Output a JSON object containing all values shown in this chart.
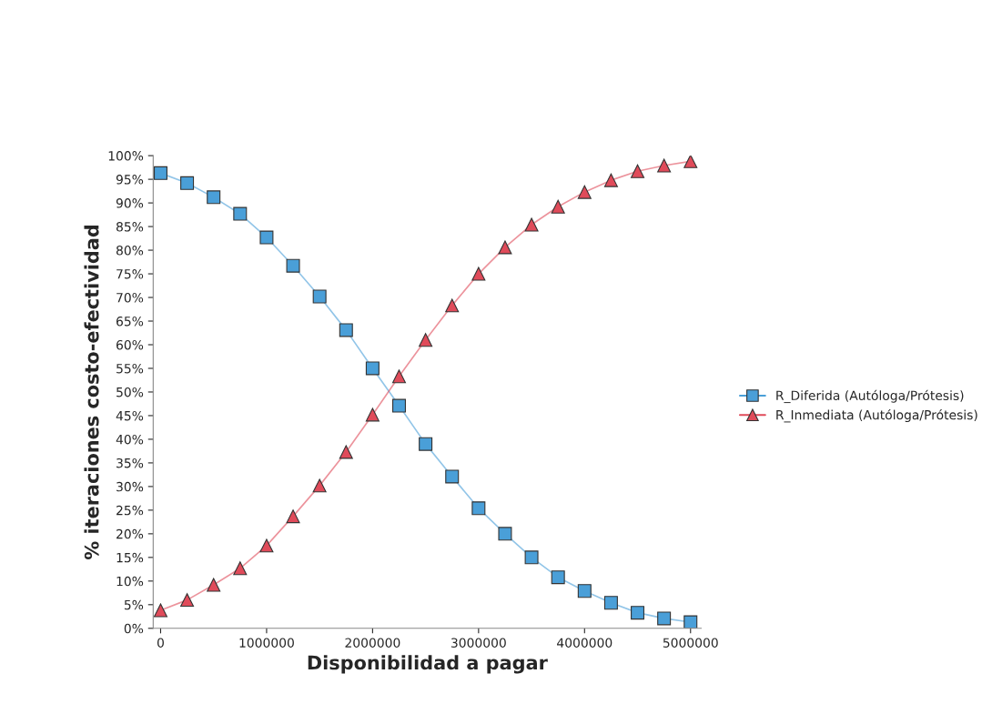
{
  "chart_data": {
    "type": "line",
    "xlabel": "Disponibilidad a pagar",
    "ylabel": "% iteraciones costo-efectividad",
    "x": [
      0,
      250000,
      500000,
      750000,
      1000000,
      1250000,
      1500000,
      1750000,
      2000000,
      2250000,
      2500000,
      2750000,
      3000000,
      3250000,
      3500000,
      3750000,
      4000000,
      4250000,
      4500000,
      4750000,
      5000000
    ],
    "series": [
      {
        "name": "R_Diferida (Autóloga/Prótesis)",
        "color": "#4a9fd8",
        "marker": "square",
        "values": [
          96.3,
          94.2,
          91.2,
          87.7,
          82.7,
          76.7,
          70.2,
          63.1,
          55.0,
          47.1,
          39.0,
          32.1,
          25.4,
          20.0,
          15.0,
          10.8,
          7.9,
          5.4,
          3.3,
          2.1,
          1.3
        ]
      },
      {
        "name": "R_Inmediata (Autóloga/Prótesis)",
        "color": "#e04b5a",
        "marker": "triangle",
        "values": [
          3.8,
          6.0,
          9.2,
          12.7,
          17.5,
          23.7,
          30.2,
          37.3,
          45.2,
          53.3,
          61.0,
          68.3,
          75.0,
          80.6,
          85.4,
          89.2,
          92.3,
          94.8,
          96.7,
          97.9,
          98.8
        ]
      }
    ],
    "xlim": [
      -70000,
      5100000
    ],
    "xticks": [
      0,
      1000000,
      2000000,
      3000000,
      4000000,
      5000000
    ],
    "ylim": [
      0,
      100
    ],
    "yticks": [
      {
        "value": 0,
        "label": "0%"
      },
      {
        "value": 5,
        "label": "5%"
      },
      {
        "value": 10,
        "label": "10%"
      },
      {
        "value": 15,
        "label": "15%"
      },
      {
        "value": 20,
        "label": "20%"
      },
      {
        "value": 25,
        "label": "25%"
      },
      {
        "value": 30,
        "label": "30%"
      },
      {
        "value": 35,
        "label": "35%"
      },
      {
        "value": 40,
        "label": "40%"
      },
      {
        "value": 45,
        "label": "45%"
      },
      {
        "value": 50,
        "label": "50%"
      },
      {
        "value": 55,
        "label": "55%"
      },
      {
        "value": 60,
        "label": "60%"
      },
      {
        "value": 65,
        "label": "65%"
      },
      {
        "value": 70,
        "label": "70%"
      },
      {
        "value": 75,
        "label": "75%"
      },
      {
        "value": 80,
        "label": "80%"
      },
      {
        "value": 85,
        "label": "85%"
      },
      {
        "value": 90,
        "label": "90%"
      },
      {
        "value": 95,
        "label": "95%"
      },
      {
        "value": 100,
        "label": "100%"
      }
    ],
    "grid": false,
    "legend": "right",
    "line_style": "solid"
  }
}
